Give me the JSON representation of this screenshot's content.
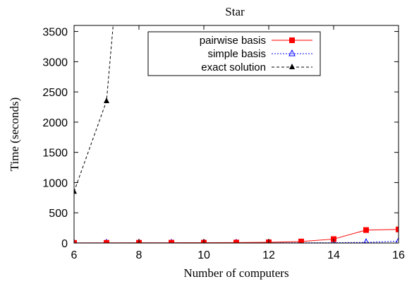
{
  "chart_data": {
    "type": "line",
    "title": "Star",
    "xlabel": "Number of computers",
    "ylabel": "Time (seconds)",
    "xlim": [
      6,
      16
    ],
    "ylim": [
      0,
      3600
    ],
    "xticks": [
      6,
      8,
      10,
      12,
      14,
      16
    ],
    "yticks": [
      0,
      500,
      1000,
      1500,
      2000,
      2500,
      3000,
      3500
    ],
    "grid": false,
    "legend_position": "top-center",
    "series": [
      {
        "name": "pairwise basis",
        "color": "#ff0000",
        "line_style": "solid",
        "marker": "filled-square",
        "x": [
          6,
          7,
          8,
          9,
          10,
          11,
          12,
          13,
          14,
          15,
          16
        ],
        "y": [
          2,
          3,
          4,
          5,
          6,
          8,
          12,
          25,
          65,
          215,
          225
        ]
      },
      {
        "name": "simple basis",
        "color": "#0000ff",
        "line_style": "dotted",
        "marker": "open-triangle",
        "x": [
          6,
          7,
          8,
          9,
          10,
          11,
          12,
          13,
          14,
          15,
          16
        ],
        "y": [
          1,
          1,
          1,
          1,
          2,
          2,
          3,
          4,
          5,
          10,
          30
        ]
      },
      {
        "name": "exact solution",
        "color": "#000000",
        "line_style": "dashed",
        "marker": "filled-triangle",
        "x": [
          6,
          7,
          7.4
        ],
        "y": [
          850,
          2350,
          4800
        ]
      }
    ]
  }
}
